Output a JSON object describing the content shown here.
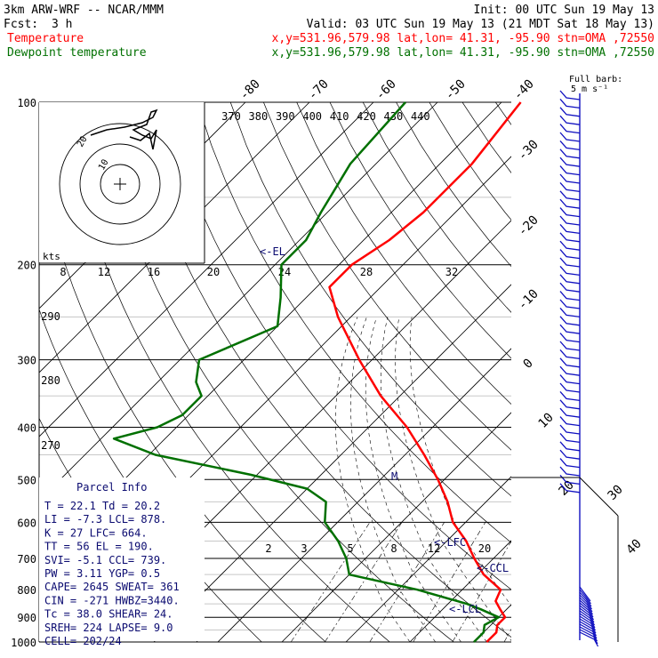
{
  "header": {
    "model": "3km ARW-WRF -- NCAR/MMM",
    "init": "Init: 00 UTC Sun 19 May 13",
    "fcst_label": "Fcst:",
    "fcst_value": "3 h",
    "valid": "Valid: 03 UTC Sun 19 May 13 (21 MDT Sat 18 May 13)",
    "temp_label": "Temperature",
    "dew_label": "Dewpoint temperature",
    "location": "x,y=531.96,579.98   lat,lon= 41.31, -95.90  stn=OMA ,72550"
  },
  "colors": {
    "temperature": "#ff0000",
    "dewpoint": "#007000",
    "wind": "#1010c0",
    "parcel": "#0a0a70"
  },
  "pressure_labels": [
    "100",
    "200",
    "300",
    "400",
    "500",
    "600",
    "700",
    "800",
    "900",
    "1000"
  ],
  "isotherm_top_labels": [
    "-80",
    "-70",
    "-60",
    "-50",
    "-40"
  ],
  "isotherm_right_labels": [
    "-30",
    "-20",
    "-10",
    "0",
    "10",
    "20",
    "30",
    "40"
  ],
  "theta_labels": [
    "370",
    "380",
    "390",
    "400",
    "410",
    "420",
    "430",
    "440"
  ],
  "mixing_labels": [
    "2",
    "3",
    "5",
    "8",
    "12",
    "20"
  ],
  "dry_adiabat_left_labels": [
    "290",
    "280",
    "270"
  ],
  "hodograph": {
    "kts_label": "kts",
    "ring_labels": [
      "8",
      "12",
      "16",
      "20",
      "24",
      "28",
      "32"
    ],
    "inner_labels": [
      "20",
      "10"
    ]
  },
  "wind_legend": {
    "title": "Full barb:",
    "value": "5 m s⁻¹"
  },
  "annotations": {
    "el": "<-EL",
    "lfc": "<-LFC",
    "ccl": "<-CCL",
    "lcl": "<-LCL",
    "m": "M"
  },
  "parcel_info": {
    "title": "Parcel Info",
    "rows": [
      "T  =    22.1  Td =  20.2",
      "LI =    -7.3  LCL=  878.",
      "K  =     27   LFC=  664.",
      "TT =     56   EL =  190.",
      "SVI=    -5.1  CCL=  739.",
      "PW =    3.11  YGP=   0.5",
      "CAPE=  2645   SWEAT= 361",
      "CIN =  -271   HWBZ=3440.",
      "Tc =   38.0   SHEAR= 24.",
      "SREH=   224   LAPSE= 9.0",
      "CELL= 202/24"
    ]
  },
  "chart_data": {
    "type": "line",
    "title": "Skew-T log-P sounding",
    "xlabel": "",
    "ylabel": "",
    "pressure_range_hpa": [
      100,
      1000
    ],
    "y_scale": "log",
    "series": [
      {
        "name": "Temperature",
        "units": "C",
        "points": [
          [
            100,
            -57
          ],
          [
            130,
            -55
          ],
          [
            160,
            -55
          ],
          [
            180,
            -56
          ],
          [
            200,
            -58
          ],
          [
            220,
            -58
          ],
          [
            250,
            -52
          ],
          [
            300,
            -42
          ],
          [
            350,
            -33
          ],
          [
            400,
            -24
          ],
          [
            450,
            -17
          ],
          [
            500,
            -11
          ],
          [
            550,
            -6
          ],
          [
            600,
            -2
          ],
          [
            650,
            3
          ],
          [
            700,
            7
          ],
          [
            750,
            11
          ],
          [
            800,
            16
          ],
          [
            840,
            17
          ],
          [
            870,
            19
          ],
          [
            900,
            21
          ],
          [
            930,
            21
          ],
          [
            960,
            22
          ],
          [
            990,
            22
          ],
          [
            1000,
            22
          ]
        ]
      },
      {
        "name": "Dewpoint temperature",
        "units": "C",
        "points": [
          [
            100,
            -75
          ],
          [
            130,
            -74
          ],
          [
            160,
            -71
          ],
          [
            180,
            -69
          ],
          [
            200,
            -69
          ],
          [
            230,
            -64
          ],
          [
            260,
            -60
          ],
          [
            300,
            -67
          ],
          [
            330,
            -64
          ],
          [
            350,
            -61
          ],
          [
            380,
            -61
          ],
          [
            400,
            -63
          ],
          [
            420,
            -68
          ],
          [
            450,
            -59
          ],
          [
            490,
            -41
          ],
          [
            520,
            -30
          ],
          [
            550,
            -25
          ],
          [
            600,
            -22
          ],
          [
            650,
            -17
          ],
          [
            700,
            -13
          ],
          [
            750,
            -10
          ],
          [
            800,
            3
          ],
          [
            850,
            13
          ],
          [
            870,
            16
          ],
          [
            900,
            20
          ],
          [
            930,
            19
          ],
          [
            960,
            20
          ],
          [
            980,
            20
          ],
          [
            1000,
            20
          ]
        ]
      }
    ],
    "wind_barb_levels": 64
  }
}
